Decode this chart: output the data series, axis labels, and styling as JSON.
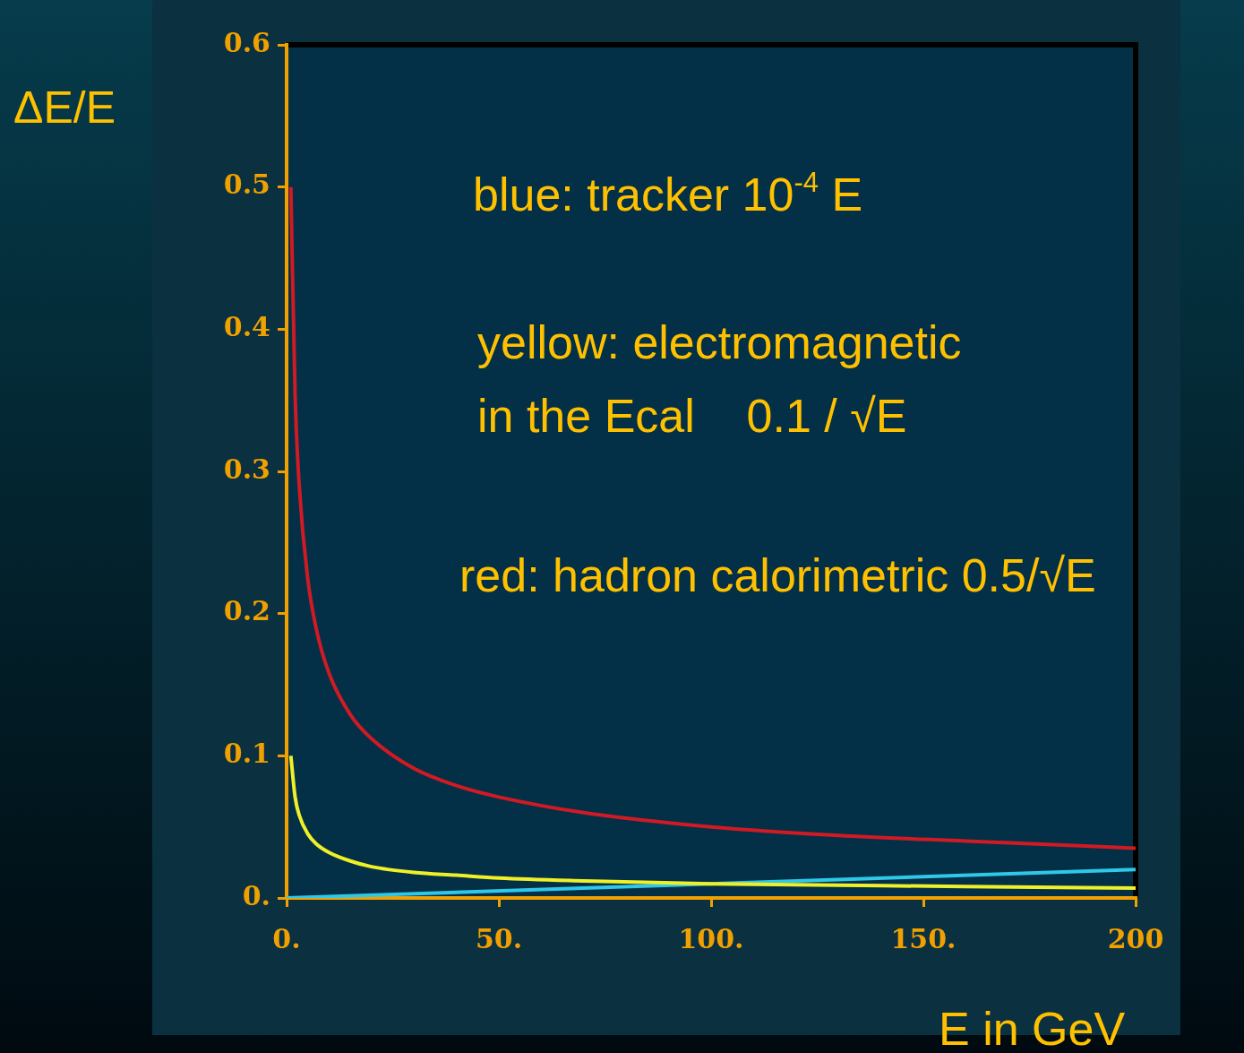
{
  "chart_data": {
    "type": "line",
    "ylabel": "ΔE/E",
    "xlabel": "E in GeV",
    "annotations": [
      "blue: tracker 10$^{-4}$ E",
      "yellow: electromagnetic\nin the Ecal    0.1 / √E",
      "red: hadron calorimetric 0.5/√E"
    ],
    "xlim": [
      0,
      200
    ],
    "ylim": [
      0,
      0.6
    ],
    "xticks": [
      {
        "value": 0,
        "label": "0."
      },
      {
        "value": 50,
        "label": "50."
      },
      {
        "value": 100,
        "label": "100."
      },
      {
        "value": 150,
        "label": "150."
      },
      {
        "value": 200,
        "label": "200"
      }
    ],
    "yticks": [
      {
        "value": 0,
        "label": "0."
      },
      {
        "value": 0.1,
        "label": "0.1"
      },
      {
        "value": 0.2,
        "label": "0.2"
      },
      {
        "value": 0.3,
        "label": "0.3"
      },
      {
        "value": 0.4,
        "label": "0.4"
      },
      {
        "value": 0.5,
        "label": "0.5"
      },
      {
        "value": 0.6,
        "label": "0.6"
      }
    ],
    "grid": false,
    "marker": "none",
    "series": [
      {
        "color": "#d01a24",
        "x": [
          1,
          2,
          3,
          5,
          7,
          10,
          15,
          20,
          30,
          40,
          50,
          70,
          100,
          130,
          160,
          200
        ],
        "values": [
          0.5,
          0.354,
          0.289,
          0.224,
          0.189,
          0.158,
          0.129,
          0.112,
          0.091,
          0.079,
          0.071,
          0.06,
          0.05,
          0.044,
          0.04,
          0.035
        ]
      },
      {
        "color": "#f0f028",
        "x": [
          1,
          2,
          3,
          5,
          7,
          10,
          15,
          20,
          30,
          40,
          50,
          70,
          100,
          130,
          160,
          200
        ],
        "values": [
          0.1,
          0.071,
          0.058,
          0.045,
          0.038,
          0.032,
          0.026,
          0.022,
          0.018,
          0.016,
          0.014,
          0.012,
          0.01,
          0.009,
          0.008,
          0.007
        ]
      },
      {
        "color": "#30c8e8",
        "x": [
          0,
          200
        ],
        "values": [
          0,
          0.02
        ]
      }
    ]
  }
}
